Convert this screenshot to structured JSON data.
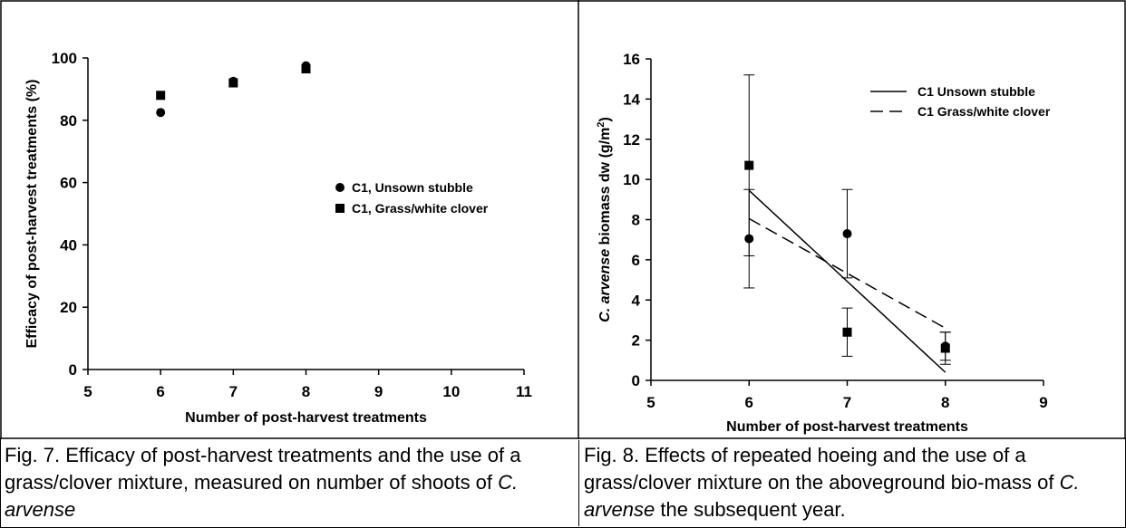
{
  "chart_data": [
    {
      "type": "scatter",
      "ylabel": "Efficacy of post-harvest treatments (%)",
      "xlabel": "Number of post-harvest treatments",
      "xlim": [
        5,
        11
      ],
      "xticks": [
        5,
        6,
        7,
        8,
        9,
        10,
        11
      ],
      "ylim": [
        0,
        100
      ],
      "yticks": [
        0,
        20,
        40,
        60,
        80,
        100
      ],
      "series": [
        {
          "name": "C1, Unsown stubble",
          "marker": "circle",
          "color": "#000000",
          "x": [
            6,
            7,
            8
          ],
          "values": [
            82.5,
            92.5,
            97.5
          ]
        },
        {
          "name": "C1, Grass/white clover",
          "marker": "square",
          "color": "#000000",
          "x": [
            6,
            7,
            8
          ],
          "values": [
            88,
            92,
            96.5
          ]
        }
      ]
    },
    {
      "type": "scatter",
      "ylabel_parts": [
        "C. arvense",
        " biomass dw (g/m",
        "2",
        ")"
      ],
      "xlabel": "Number of post-harvest treatments",
      "xlim": [
        5,
        9
      ],
      "xticks": [
        5,
        6,
        7,
        8,
        9
      ],
      "ylim": [
        0,
        16
      ],
      "yticks": [
        0,
        2,
        4,
        6,
        8,
        10,
        12,
        14,
        16
      ],
      "series": [
        {
          "marker": "circle",
          "color": "#000000",
          "x": [
            6,
            7,
            8
          ],
          "values": [
            7.05,
            7.3,
            1.7
          ],
          "errors": [
            2.45,
            2.2,
            0.7
          ]
        },
        {
          "marker": "square",
          "color": "#000000",
          "x": [
            6,
            7,
            8
          ],
          "values": [
            10.7,
            2.4,
            1.6
          ],
          "errors": [
            4.5,
            1.2,
            0.8
          ]
        }
      ],
      "lines": [
        {
          "name": "C1 Unsown stubble",
          "dashed": false,
          "color": "#000000",
          "x": [
            6,
            8
          ],
          "values": [
            9.45,
            0.4
          ]
        },
        {
          "name": "C1 Grass/white clover",
          "dashed": true,
          "color": "#000000",
          "x": [
            6,
            8
          ],
          "values": [
            8.05,
            2.6
          ]
        }
      ]
    }
  ],
  "captions": [
    {
      "parts": [
        "Fig. 7. Efficacy of post-harvest treatments and the use of a grass/clover mixture, measured on number of shoots of ",
        "C. arvense"
      ]
    },
    {
      "parts": [
        "Fig. 8. Effects of repeated hoeing and the use of a grass/clover mixture on the aboveground bio-mass of ",
        "C. arvense",
        " the subsequent year."
      ]
    }
  ]
}
